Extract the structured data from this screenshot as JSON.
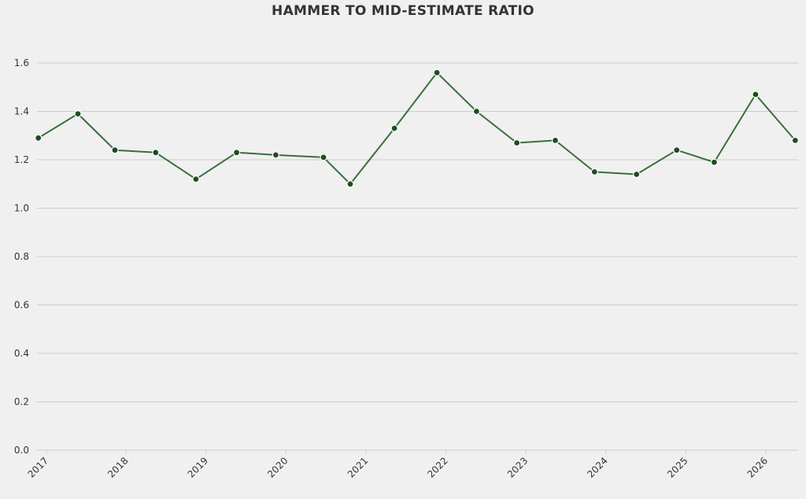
{
  "chart_data": {
    "type": "line",
    "title": "HAMMER TO MID-ESTIMATE RATIO",
    "xlabel": "",
    "ylabel": "",
    "ylim": [
      0,
      1.6
    ],
    "yticks": [
      "0.0",
      "0.2",
      "0.4",
      "0.6",
      "0.8",
      "1.0",
      "1.2",
      "1.4",
      "1.6"
    ],
    "xticks": [
      "2017",
      "2018",
      "2019",
      "2020",
      "2021",
      "2022",
      "2023",
      "2024",
      "2025",
      "2026"
    ],
    "grid": "horizontal",
    "line_color": "#3a6e3a",
    "marker_color": "#1e4d1e",
    "series": [
      {
        "x": [
          "2016-11-25",
          "2017-05-25",
          "2017-11-10",
          "2018-05-15",
          "2018-11-15",
          "2019-05-20",
          "2019-11-15",
          "2020-06-20",
          "2020-10-20",
          "2021-05-10",
          "2021-11-20",
          "2022-05-20",
          "2022-11-20",
          "2023-05-15",
          "2023-11-10",
          "2024-05-20",
          "2024-11-20",
          "2025-05-10",
          "2025-11-15",
          "2026-05-15"
        ],
        "values": [
          1.29,
          1.39,
          1.24,
          1.23,
          1.12,
          1.23,
          1.22,
          1.21,
          1.1,
          1.33,
          1.56,
          1.4,
          1.27,
          1.28,
          1.15,
          1.14,
          1.24,
          1.19,
          1.47,
          1.28
        ]
      }
    ]
  }
}
